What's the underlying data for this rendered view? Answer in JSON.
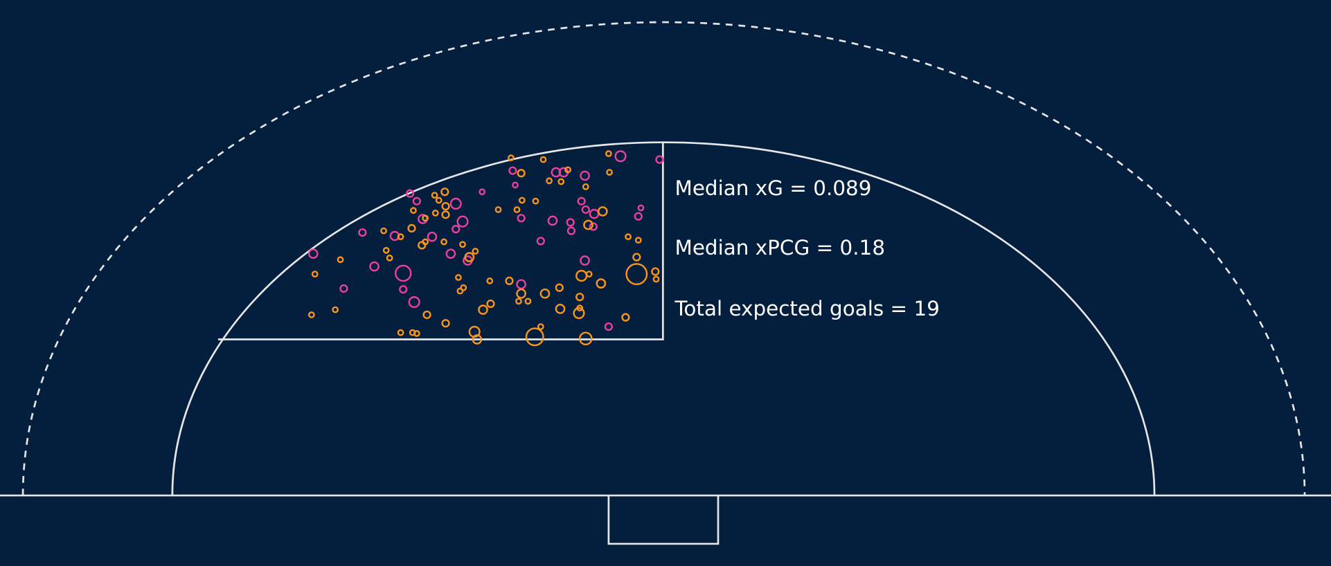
{
  "chart_data": {
    "type": "scatter",
    "annotations": [
      "Median xG = 0.089",
      "Median xPCG = 0.18",
      "Total expected goals = 19"
    ],
    "xlim": [
      0,
      1568
    ],
    "ylim": [
      0,
      667
    ],
    "series": [
      {
        "color": "#e8409c",
        "x": [
          731,
          777,
          604,
          655,
          664,
          689,
          483,
          491,
          537,
          568,
          607,
          685,
          690,
          700,
          755,
          752,
          614,
          651,
          672,
          673,
          699,
          545,
          537,
          509,
          498,
          465,
          427,
          369,
          637,
          531,
          551,
          689,
          441,
          475,
          475,
          405,
          488,
          614,
          717
        ],
        "y": [
          184,
          188,
          201,
          203,
          203,
          207,
          228,
          237,
          240,
          226,
          218,
          237,
          247,
          252,
          245,
          255,
          257,
          260,
          262,
          272,
          267,
          261,
          270,
          279,
          258,
          278,
          274,
          299,
          284,
          299,
          307,
          307,
          314,
          322,
          341,
          340,
          356,
          335,
          385
        ],
        "sizes": [
          6,
          4,
          4,
          5,
          5,
          5,
          4,
          4,
          6,
          3,
          3,
          4,
          4,
          5,
          3,
          4,
          4,
          5,
          4,
          4,
          4,
          6,
          4,
          5,
          5,
          5,
          4,
          5,
          4,
          5,
          5,
          5,
          5,
          9,
          4,
          4,
          6,
          5,
          4
        ]
      },
      {
        "color": "#f7941d",
        "x": [
          602,
          640,
          614,
          669,
          718,
          647,
          661,
          690,
          512,
          524,
          517,
          615,
          631,
          609,
          587,
          710,
          525,
          513,
          525,
          501,
          487,
          485,
          452,
          472,
          497,
          501,
          523,
          545,
          560,
          553,
          455,
          459,
          401,
          693,
          740,
          752,
          750,
          750,
          772,
          773,
          708,
          685,
          694,
          540,
          577,
          600,
          542,
          546,
          659,
          642,
          614,
          683,
          611,
          622,
          578,
          569,
          660,
          683,
          682,
          737,
          371,
          367,
          395,
          525,
          503,
          472,
          486,
          491,
          559,
          562,
          630,
          637,
          690,
          717
        ],
        "y": [
          186,
          188,
          204,
          200,
          203,
          213,
          214,
          220,
          230,
          226,
          236,
          236,
          237,
          247,
          247,
          249,
          243,
          251,
          253,
          257,
          248,
          269,
          272,
          279,
          289,
          285,
          285,
          288,
          296,
          303,
          295,
          304,
          306,
          265,
          279,
          283,
          303,
          323,
          320,
          329,
          334,
          325,
          323,
          327,
          331,
          331,
          343,
          339,
          339,
          346,
          346,
          350,
          355,
          355,
          358,
          365,
          364,
          363,
          369,
          374,
          323,
          371,
          365,
          381,
          371,
          392,
          392,
          393,
          391,
          400,
          397,
          385,
          399,
          181
        ],
        "sizes": [
          3,
          3,
          4,
          3,
          3,
          3,
          3,
          3,
          3,
          4,
          3,
          3,
          3,
          3,
          3,
          5,
          4,
          3,
          4,
          3,
          3,
          4,
          3,
          3,
          4,
          3,
          3,
          3,
          3,
          5,
          3,
          3,
          3,
          5,
          3,
          3,
          4,
          12,
          4,
          3,
          5,
          6,
          3,
          3,
          3,
          4,
          3,
          3,
          4,
          5,
          5,
          4,
          3,
          3,
          4,
          5,
          5,
          3,
          6,
          4,
          3,
          3,
          3,
          4,
          4,
          3,
          3,
          3,
          6,
          5,
          10,
          3,
          7,
          3
        ]
      }
    ]
  }
}
